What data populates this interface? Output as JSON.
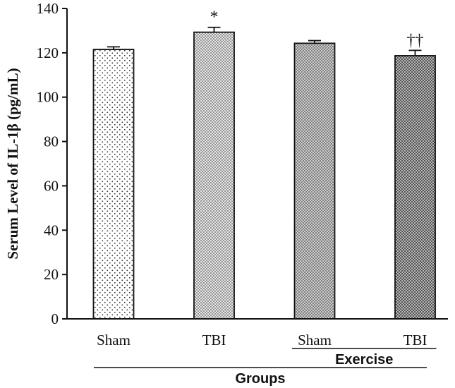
{
  "chart_data": {
    "type": "bar",
    "categories": [
      "Sham",
      "TBI",
      "Sham",
      "TBI"
    ],
    "values": [
      121.5,
      129.3,
      124.3,
      118.7
    ],
    "errors": [
      1.2,
      2.2,
      1.2,
      2.4
    ],
    "annotations": [
      "",
      "*",
      "",
      "††"
    ],
    "patterns": [
      "sparse-dots",
      "dense-dots",
      "crosshatch",
      "crosshatch-dense"
    ],
    "ylabel": "Serum Level of IL-1β (pg/mL)",
    "xlabel": "Groups",
    "subgroup_label": "Exercise",
    "subgroup_categories": [
      2,
      3
    ],
    "ylim": [
      0,
      140
    ],
    "yticks": [
      "0",
      "20",
      "40",
      "60",
      "80",
      "100",
      "120",
      "140"
    ],
    "grid": false
  }
}
